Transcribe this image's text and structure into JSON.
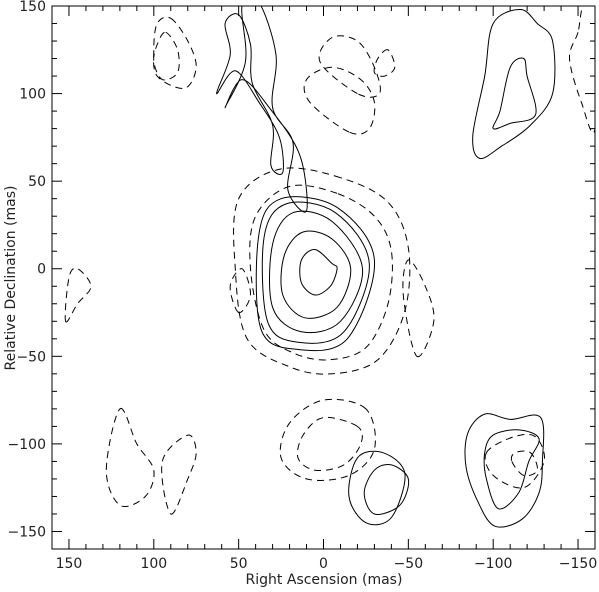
{
  "chart_data": {
    "type": "contour",
    "xlabel": "Right Ascension  (mas)",
    "ylabel": "Relative Declination  (mas)",
    "xlim": [
      160,
      -160
    ],
    "ylim": [
      -160,
      150
    ],
    "x_ticks": [
      150,
      100,
      50,
      0,
      -50,
      -100,
      -150
    ],
    "y_ticks": [
      150,
      100,
      50,
      0,
      -50,
      -100,
      -150
    ],
    "x_tick_labels": [
      "150",
      "100",
      "50",
      "0",
      "−50",
      "−100",
      "−150"
    ],
    "y_tick_labels": [
      "150",
      "100",
      "50",
      "0",
      "−50",
      "−100",
      "−150"
    ],
    "series": [
      {
        "style": "solid",
        "contours": [
          [
            [
              -5,
              3
            ],
            [
              5,
              11
            ],
            [
              13,
              5
            ],
            [
              13,
              -8
            ],
            [
              5,
              -15
            ],
            [
              -4,
              -10
            ],
            [
              -8,
              0
            ]
          ],
          [
            [
              -5,
              17
            ],
            [
              12,
              21
            ],
            [
              23,
              8
            ],
            [
              24,
              -15
            ],
            [
              11,
              -28
            ],
            [
              -8,
              -22
            ],
            [
              -16,
              0
            ]
          ],
          [
            [
              -5,
              27
            ],
            [
              18,
              32
            ],
            [
              30,
              14
            ],
            [
              30,
              -22
            ],
            [
              13,
              -36
            ],
            [
              -10,
              -30
            ],
            [
              -23,
              0
            ]
          ],
          [
            [
              -7,
              32
            ],
            [
              22,
              37
            ],
            [
              35,
              18
            ],
            [
              33,
              -30
            ],
            [
              15,
              -42
            ],
            [
              -12,
              -36
            ],
            [
              -27,
              3
            ]
          ],
          [
            [
              -8,
              35
            ],
            [
              25,
              40
            ],
            [
              38,
              20
            ],
            [
              37,
              -34
            ],
            [
              16,
              -46
            ],
            [
              -14,
              -40
            ],
            [
              -30,
              5
            ]
          ],
          [
            [
              63,
              100
            ],
            [
              55,
              122
            ],
            [
              58,
              140
            ],
            [
              50,
              145
            ],
            [
              43,
              128
            ],
            [
              42,
              106
            ],
            [
              30,
              82
            ],
            [
              31,
              59
            ],
            [
              24,
              55
            ],
            [
              26,
              75
            ],
            [
              38,
              95
            ],
            [
              52,
              113
            ]
          ],
          [
            [
              58,
              92
            ],
            [
              46,
              118
            ],
            [
              48,
              150
            ],
            [
              38,
              152
            ],
            [
              28,
              122
            ],
            [
              30,
              92
            ],
            [
              18,
              72
            ],
            [
              21,
              45
            ],
            [
              10,
              33
            ],
            [
              14,
              65
            ],
            [
              32,
              92
            ],
            [
              48,
              108
            ]
          ],
          [
            [
              -125,
              88
            ],
            [
              -120,
              110
            ],
            [
              -118,
              120
            ],
            [
              -110,
              115
            ],
            [
              -104,
              90
            ],
            [
              -100,
              80
            ],
            [
              -110,
              83
            ]
          ],
          [
            [
              -135,
              100
            ],
            [
              -135,
              130
            ],
            [
              -126,
              140
            ],
            [
              -116,
              148
            ],
            [
              -100,
              140
            ],
            [
              -95,
              110
            ],
            [
              -88,
              76
            ],
            [
              -92,
              63
            ],
            [
              -105,
              70
            ],
            [
              -122,
              82
            ]
          ],
          [
            [
              -127,
              -97
            ],
            [
              -121,
              -110
            ],
            [
              -115,
              -128
            ],
            [
              -103,
              -137
            ],
            [
              -96,
              -120
            ],
            [
              -95,
              -105
            ],
            [
              -100,
              -95
            ],
            [
              -115,
              -92
            ]
          ],
          [
            [
              -128,
              -85
            ],
            [
              -129,
              -110
            ],
            [
              -127,
              -128
            ],
            [
              -117,
              -143
            ],
            [
              -101,
              -147
            ],
            [
              -91,
              -133
            ],
            [
              -84,
              -113
            ],
            [
              -85,
              -94
            ],
            [
              -95,
              -83
            ],
            [
              -110,
              -86
            ]
          ],
          [
            [
              -50,
              -120
            ],
            [
              -45,
              -135
            ],
            [
              -30,
              -140
            ],
            [
              -24,
              -128
            ],
            [
              -30,
              -115
            ],
            [
              -40,
              -112
            ]
          ],
          [
            [
              -48,
              -117
            ],
            [
              -40,
              -142
            ],
            [
              -25,
              -145
            ],
            [
              -15,
              -130
            ],
            [
              -20,
              -108
            ],
            [
              -35,
              -105
            ]
          ]
        ]
      },
      {
        "style": "dashed",
        "contours": [
          [
            [
              -8,
              43
            ],
            [
              20,
              47
            ],
            [
              40,
              30
            ],
            [
              43,
              0
            ],
            [
              35,
              -35
            ],
            [
              18,
              -48
            ],
            [
              -3,
              -52
            ],
            [
              -25,
              -45
            ],
            [
              -38,
              -20
            ],
            [
              -40,
              10
            ],
            [
              -30,
              30
            ]
          ],
          [
            [
              -10,
              52
            ],
            [
              25,
              57
            ],
            [
              50,
              40
            ],
            [
              52,
              0
            ],
            [
              45,
              -40
            ],
            [
              20,
              -56
            ],
            [
              -5,
              -60
            ],
            [
              -32,
              -52
            ],
            [
              -48,
              -24
            ],
            [
              -50,
              12
            ],
            [
              -38,
              38
            ]
          ],
          [
            [
              -20,
              100
            ],
            [
              2,
              118
            ],
            [
              -5,
              132
            ],
            [
              -20,
              130
            ],
            [
              -30,
              115
            ],
            [
              -33,
              100
            ]
          ],
          [
            [
              -15,
              78
            ],
            [
              8,
              95
            ],
            [
              10,
              108
            ],
            [
              -5,
              115
            ],
            [
              -22,
              108
            ],
            [
              -30,
              95
            ],
            [
              -27,
              80
            ]
          ],
          [
            [
              -38,
              125
            ],
            [
              -32,
              120
            ],
            [
              -30,
              112
            ],
            [
              -36,
              110
            ],
            [
              -42,
              115
            ]
          ],
          [
            [
              90,
              143
            ],
            [
              80,
              130
            ],
            [
              75,
              115
            ],
            [
              82,
              103
            ],
            [
              98,
              110
            ],
            [
              100,
              125
            ],
            [
              98,
              140
            ]
          ],
          [
            [
              93,
              135
            ],
            [
              86,
              125
            ],
            [
              86,
              112
            ],
            [
              95,
              108
            ],
            [
              100,
              118
            ],
            [
              98,
              128
            ]
          ],
          [
            [
              -96,
              -105
            ],
            [
              -100,
              -118
            ],
            [
              -118,
              -125
            ],
            [
              -130,
              -110
            ],
            [
              -125,
              -96
            ],
            [
              -112,
              -96
            ]
          ],
          [
            [
              -111,
              -110
            ],
            [
              -118,
              -118
            ],
            [
              -126,
              -115
            ],
            [
              -122,
              -105
            ],
            [
              -113,
              -105
            ]
          ],
          [
            [
              -25,
              -80
            ],
            [
              0,
              -75
            ],
            [
              20,
              -88
            ],
            [
              25,
              -108
            ],
            [
              10,
              -120
            ],
            [
              -15,
              -118
            ],
            [
              -30,
              -103
            ]
          ],
          [
            [
              -20,
              -90
            ],
            [
              0,
              -85
            ],
            [
              12,
              -95
            ],
            [
              15,
              -108
            ],
            [
              5,
              -115
            ],
            [
              -12,
              -112
            ],
            [
              -22,
              -100
            ]
          ],
          [
            [
              -55,
              -50
            ],
            [
              -65,
              -30
            ],
            [
              -60,
              -10
            ],
            [
              -50,
              5
            ],
            [
              -47,
              -15
            ]
          ],
          [
            [
              50,
              -25
            ],
            [
              55,
              -10
            ],
            [
              48,
              0
            ],
            [
              43,
              -15
            ]
          ],
          [
            [
              120,
              -80
            ],
            [
              110,
              -100
            ],
            [
              100,
              -115
            ],
            [
              105,
              -130
            ],
            [
              120,
              -135
            ],
            [
              128,
              -115
            ]
          ],
          [
            [
              -150,
              135
            ],
            [
              -145,
              120
            ],
            [
              -152,
              95
            ],
            [
              -160,
              80
            ],
            [
              -160,
              150
            ],
            [
              -153,
              150
            ]
          ],
          [
            [
              152,
              -30
            ],
            [
              145,
              -20
            ],
            [
              137,
              -10
            ],
            [
              145,
              0
            ],
            [
              150,
              -5
            ]
          ],
          [
            [
              90,
              -140
            ],
            [
              80,
              -120
            ],
            [
              75,
              -105
            ],
            [
              80,
              -95
            ],
            [
              95,
              -110
            ]
          ]
        ]
      }
    ]
  }
}
